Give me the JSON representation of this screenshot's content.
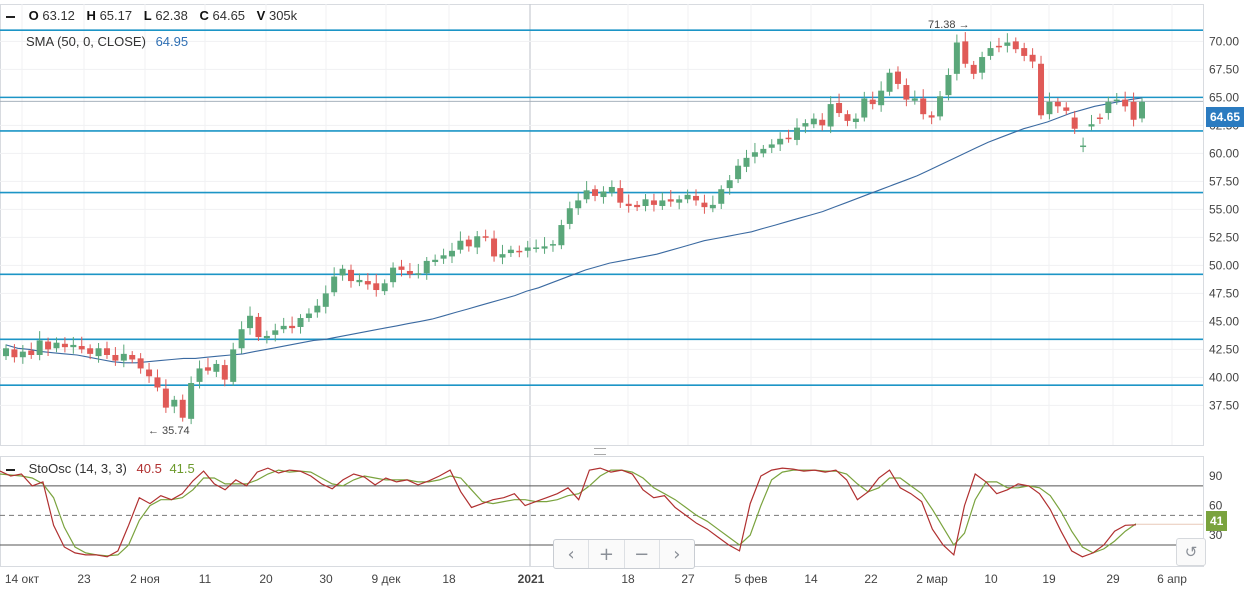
{
  "legend": {
    "o_label": "O",
    "o_value": "63.12",
    "h_label": "H",
    "h_value": "65.17",
    "l_label": "L",
    "l_value": "62.38",
    "c_label": "C",
    "c_value": "64.65",
    "v_label": "V",
    "v_value": "305k",
    "sma_label": "SMA (50, 0, CLOSE)",
    "sma_value": "64.95",
    "osc_label": "StoOsc (14, 3, 3)",
    "osc_k": "40.5",
    "osc_d": "41.5"
  },
  "badges": {
    "last_price": "64.65",
    "osc_last": "41"
  },
  "navigation": {
    "prev": "‹",
    "zoom_in": "+",
    "zoom_out": "−",
    "next": "›",
    "reset": "↺"
  },
  "colors": {
    "up": "#5aa77a",
    "down": "#e05a57",
    "sma": "#3b6aa1",
    "level": "#1c95c6",
    "osc_k": "#b03030",
    "osc_d": "#7aa33e"
  },
  "chart_data": [
    {
      "type": "candlestick",
      "yticks": [
        "70.00",
        "67.50",
        "65.00",
        "62.50",
        "60.00",
        "57.50",
        "55.00",
        "52.50",
        "50.00",
        "47.50",
        "45.00",
        "42.50",
        "40.00",
        "37.50"
      ],
      "ylim": [
        34.5,
        72.8
      ],
      "xticks": [
        "14 окт",
        "23",
        "2 ноя",
        "11",
        "20",
        "30",
        "9 дек",
        "18",
        "2021",
        "18",
        "27",
        "5 фев",
        "14",
        "22",
        "2 мар",
        "10",
        "19",
        "29",
        "6 апр"
      ],
      "annotations": [
        {
          "label": "71.38",
          "value": 71.38
        },
        {
          "label": "35.74",
          "value": 35.74
        }
      ],
      "horizontal_levels": [
        71.0,
        65.0,
        62.0,
        56.5,
        49.2,
        43.4,
        39.3
      ],
      "close": [
        42.6,
        41.8,
        42.3,
        42.0,
        43.3,
        42.5,
        43.1,
        42.7,
        42.9,
        42.5,
        42.1,
        42.6,
        42.0,
        41.5,
        42.1,
        41.6,
        40.8,
        40.1,
        39.1,
        37.3,
        38.0,
        36.4,
        39.5,
        40.8,
        40.6,
        41.2,
        39.8,
        42.5,
        44.3,
        45.5,
        43.6,
        43.7,
        44.2,
        44.6,
        44.4,
        45.3,
        45.7,
        46.4,
        47.5,
        49.0,
        49.7,
        48.6,
        48.7,
        48.3,
        47.8,
        48.4,
        49.8,
        49.6,
        49.2,
        49.3,
        50.4,
        50.5,
        50.9,
        51.3,
        52.2,
        51.7,
        52.6,
        52.5,
        50.8,
        51.0,
        51.4,
        51.2,
        51.6,
        51.6,
        51.7,
        51.9,
        53.6,
        55.1,
        55.8,
        56.7,
        56.2,
        56.6,
        57.0,
        55.6,
        55.3,
        55.2,
        55.9,
        55.4,
        55.8,
        55.7,
        55.9,
        56.3,
        55.8,
        55.2,
        55.4,
        56.8,
        57.6,
        58.9,
        59.6,
        60.1,
        60.4,
        60.8,
        61.3,
        61.3,
        62.3,
        62.7,
        63.1,
        62.5,
        64.4,
        63.6,
        62.9,
        63.1,
        64.9,
        64.4,
        65.6,
        67.2,
        66.2,
        64.8,
        64.9,
        63.5,
        63.2,
        65.1,
        67.0,
        69.9,
        68.0,
        67.1,
        68.6,
        69.4,
        69.5,
        69.9,
        69.3,
        68.7,
        68.2,
        63.4,
        64.6,
        64.2,
        63.8,
        62.2,
        60.7,
        62.6,
        63.1,
        64.6,
        64.8,
        64.2,
        63.0,
        64.6
      ],
      "open": [
        41.9,
        42.5,
        41.8,
        42.4,
        42.0,
        43.2,
        42.6,
        43.0,
        42.7,
        42.8,
        42.6,
        41.9,
        42.6,
        42.0,
        41.5,
        42.0,
        41.7,
        40.7,
        40.0,
        39.0,
        37.4,
        38.0,
        36.3,
        39.6,
        40.9,
        40.5,
        41.1,
        39.6,
        42.6,
        44.4,
        45.4,
        43.5,
        43.8,
        44.3,
        44.6,
        44.5,
        45.3,
        45.8,
        46.3,
        47.6,
        49.1,
        49.6,
        48.5,
        48.6,
        48.4,
        47.7,
        48.5,
        49.9,
        49.5,
        49.3,
        49.3,
        50.3,
        50.6,
        50.8,
        51.4,
        52.3,
        51.6,
        52.6,
        52.4,
        50.7,
        51.1,
        51.3,
        51.3,
        51.5,
        51.5,
        51.8,
        51.8,
        53.7,
        55.1,
        55.9,
        56.8,
        56.1,
        56.5,
        56.9,
        55.5,
        55.4,
        55.3,
        55.8,
        55.3,
        55.9,
        55.6,
        55.9,
        56.2,
        55.6,
        55.1,
        55.5,
        56.9,
        57.7,
        58.8,
        59.7,
        60.0,
        60.5,
        60.8,
        61.4,
        61.2,
        62.4,
        62.6,
        63.0,
        62.4,
        64.5,
        63.5,
        62.8,
        63.2,
        64.8,
        64.3,
        65.5,
        67.3,
        66.1,
        64.7,
        64.9,
        63.4,
        63.3,
        65.2,
        67.1,
        70.0,
        67.9,
        67.2,
        68.7,
        69.6,
        69.6,
        70.0,
        69.4,
        68.8,
        68.0,
        63.5,
        64.6,
        64.1,
        63.2,
        60.7,
        62.4,
        63.2,
        63.6,
        64.7,
        64.8,
        64.6,
        63.12
      ]
    },
    {
      "type": "line",
      "name": "SMA",
      "values": [
        42.9,
        42.6,
        42.5,
        42.3,
        42.2,
        42.1,
        42.0,
        41.8,
        41.6,
        41.4,
        41.3,
        41.3,
        41.4,
        41.5,
        41.6,
        41.7,
        41.7,
        41.8,
        41.9,
        42.0,
        42.1,
        42.3,
        42.5,
        42.7,
        42.9,
        43.1,
        43.3,
        43.4,
        43.6,
        43.8,
        44.0,
        44.2,
        44.4,
        44.6,
        44.8,
        45.0,
        45.2,
        45.5,
        45.8,
        46.1,
        46.4,
        46.7,
        47.0,
        47.3,
        47.7,
        48.0,
        48.4,
        48.8,
        49.2,
        49.6,
        49.9,
        50.2,
        50.4,
        50.6,
        50.8,
        51.0,
        51.3,
        51.6,
        51.9,
        52.2,
        52.4,
        52.6,
        52.8,
        53.0,
        53.3,
        53.6,
        53.9,
        54.2,
        54.5,
        54.8,
        55.2,
        55.6,
        56.0,
        56.4,
        56.8,
        57.2,
        57.6,
        58.0,
        58.5,
        59.0,
        59.5,
        60.0,
        60.5,
        61.0,
        61.4,
        61.8,
        62.2,
        62.5,
        62.8,
        63.2,
        63.6,
        63.9,
        64.2,
        64.4,
        64.6,
        64.8,
        64.95
      ]
    },
    {
      "type": "line",
      "yticks": [
        "90",
        "60",
        "30"
      ],
      "levels": [
        80,
        50,
        20
      ],
      "k": [
        95,
        90,
        92,
        80,
        84,
        40,
        18,
        12,
        10,
        10,
        8,
        14,
        40,
        68,
        62,
        70,
        66,
        72,
        85,
        95,
        82,
        76,
        86,
        80,
        94,
        98,
        93,
        96,
        95,
        90,
        82,
        77,
        86,
        92,
        89,
        81,
        88,
        84,
        86,
        81,
        85,
        90,
        96,
        74,
        58,
        62,
        66,
        68,
        72,
        60,
        64,
        68,
        72,
        78,
        66,
        96,
        98,
        94,
        96,
        92,
        76,
        68,
        70,
        58,
        50,
        42,
        36,
        28,
        20,
        14,
        62,
        90,
        96,
        98,
        97,
        95,
        96,
        94,
        96,
        86,
        66,
        74,
        88,
        96,
        78,
        72,
        64,
        36,
        20,
        10,
        60,
        92,
        84,
        72,
        76,
        82,
        80,
        72,
        56,
        34,
        14,
        8,
        12,
        20,
        34,
        40,
        40.5
      ],
      "d": [
        92,
        91,
        90,
        88,
        82,
        68,
        38,
        18,
        12,
        10,
        9,
        10,
        20,
        45,
        60,
        66,
        66,
        68,
        76,
        88,
        88,
        82,
        82,
        82,
        86,
        92,
        96,
        94,
        95,
        94,
        88,
        82,
        80,
        86,
        90,
        88,
        86,
        86,
        86,
        84,
        84,
        86,
        90,
        88,
        76,
        64,
        62,
        64,
        66,
        66,
        64,
        64,
        66,
        70,
        72,
        80,
        90,
        96,
        96,
        94,
        88,
        78,
        72,
        66,
        58,
        50,
        44,
        36,
        28,
        20,
        30,
        60,
        86,
        94,
        96,
        96,
        96,
        95,
        95,
        92,
        82,
        74,
        78,
        88,
        88,
        80,
        72,
        56,
        38,
        20,
        32,
        66,
        84,
        84,
        78,
        78,
        80,
        78,
        70,
        54,
        34,
        18,
        12,
        16,
        24,
        34,
        41.5
      ]
    }
  ]
}
